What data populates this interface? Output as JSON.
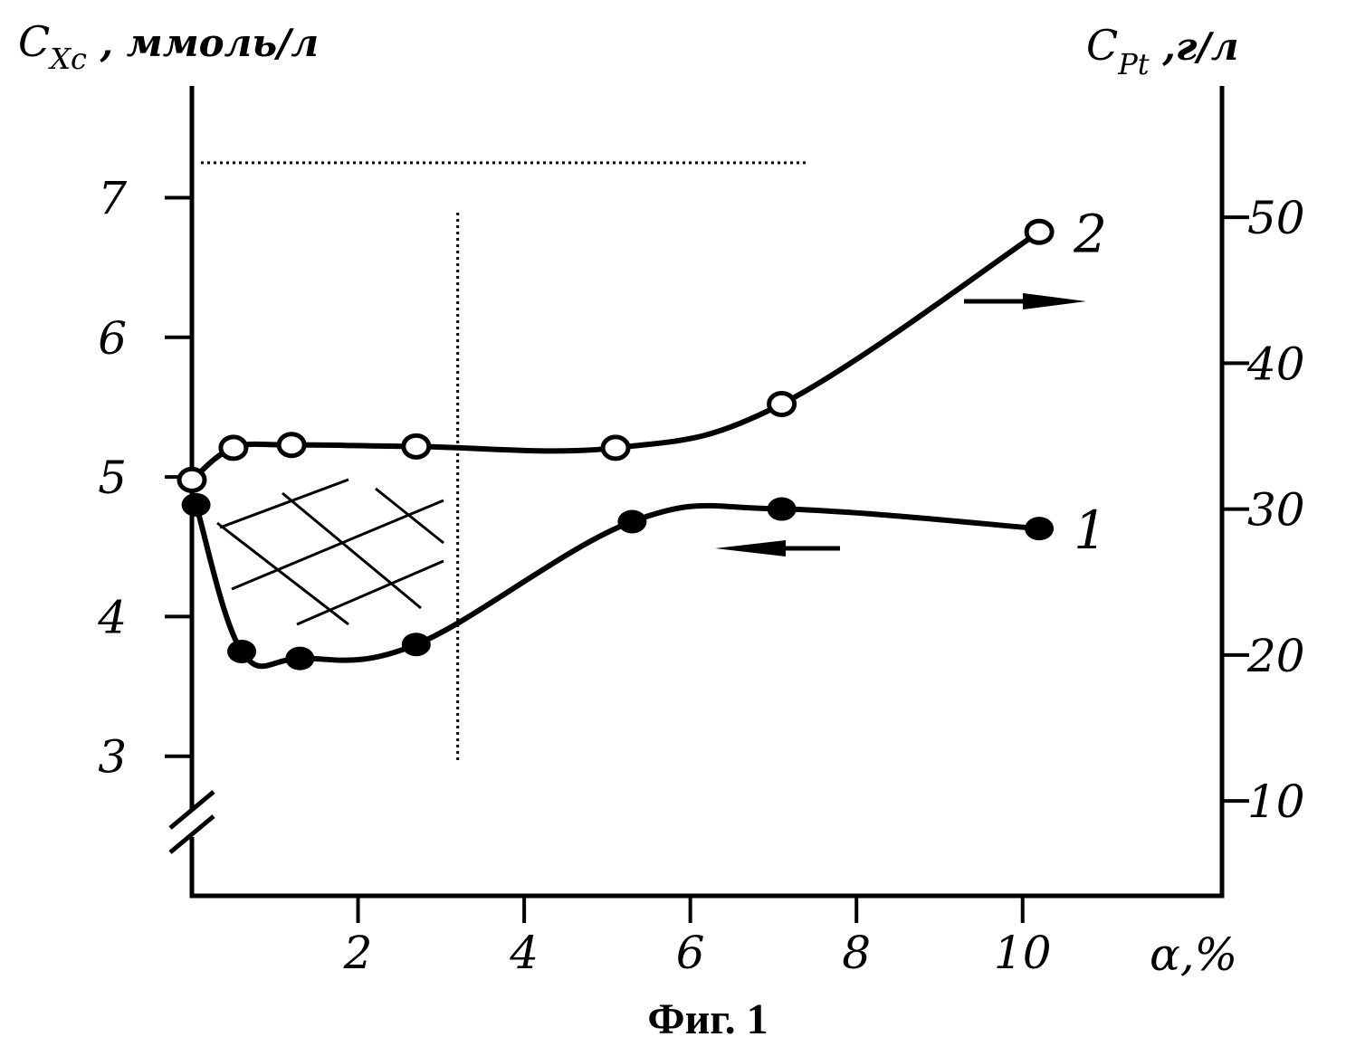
{
  "chart_data": {
    "type": "line",
    "title": "",
    "caption": "Фиг. 1",
    "x_label": "α,%",
    "x_ticks": [
      2,
      4,
      6,
      8,
      10
    ],
    "x_range": [
      0,
      12.4
    ],
    "y_left": {
      "label_main": "C",
      "label_sub": "Xc",
      "label_unit": " , ммоль/л",
      "ticks": [
        3,
        4,
        5,
        6,
        7
      ],
      "range": [
        2.0,
        7.8
      ],
      "axis_break": true
    },
    "y_right": {
      "label_main": "C",
      "label_sub": "Pt",
      "label_unit": " ,г/л",
      "ticks": [
        10,
        20,
        30,
        40,
        50
      ],
      "range": [
        3.5,
        59.0
      ]
    },
    "series": [
      {
        "name": "1",
        "axis": "left",
        "marker": "filled-circle",
        "arrow": "left",
        "points": [
          [
            0.05,
            4.8
          ],
          [
            0.6,
            3.75
          ],
          [
            1.3,
            3.7
          ],
          [
            2.7,
            3.8
          ],
          [
            5.3,
            4.68
          ],
          [
            7.1,
            4.77
          ],
          [
            10.2,
            4.63
          ]
        ]
      },
      {
        "name": "2",
        "axis": "right",
        "marker": "open-circle",
        "arrow": "right",
        "points": [
          [
            0.0,
            32
          ],
          [
            0.5,
            34.2
          ],
          [
            1.2,
            34.4
          ],
          [
            2.7,
            34.3
          ],
          [
            5.1,
            34.2
          ],
          [
            7.1,
            37.2
          ],
          [
            10.2,
            49
          ]
        ]
      }
    ],
    "annotations": {
      "hatched_region_x": [
        0.3,
        3.0
      ],
      "vertical_dotted_x": 3.2,
      "horizontal_dotted_y_left": 7.25
    },
    "grid": false
  }
}
